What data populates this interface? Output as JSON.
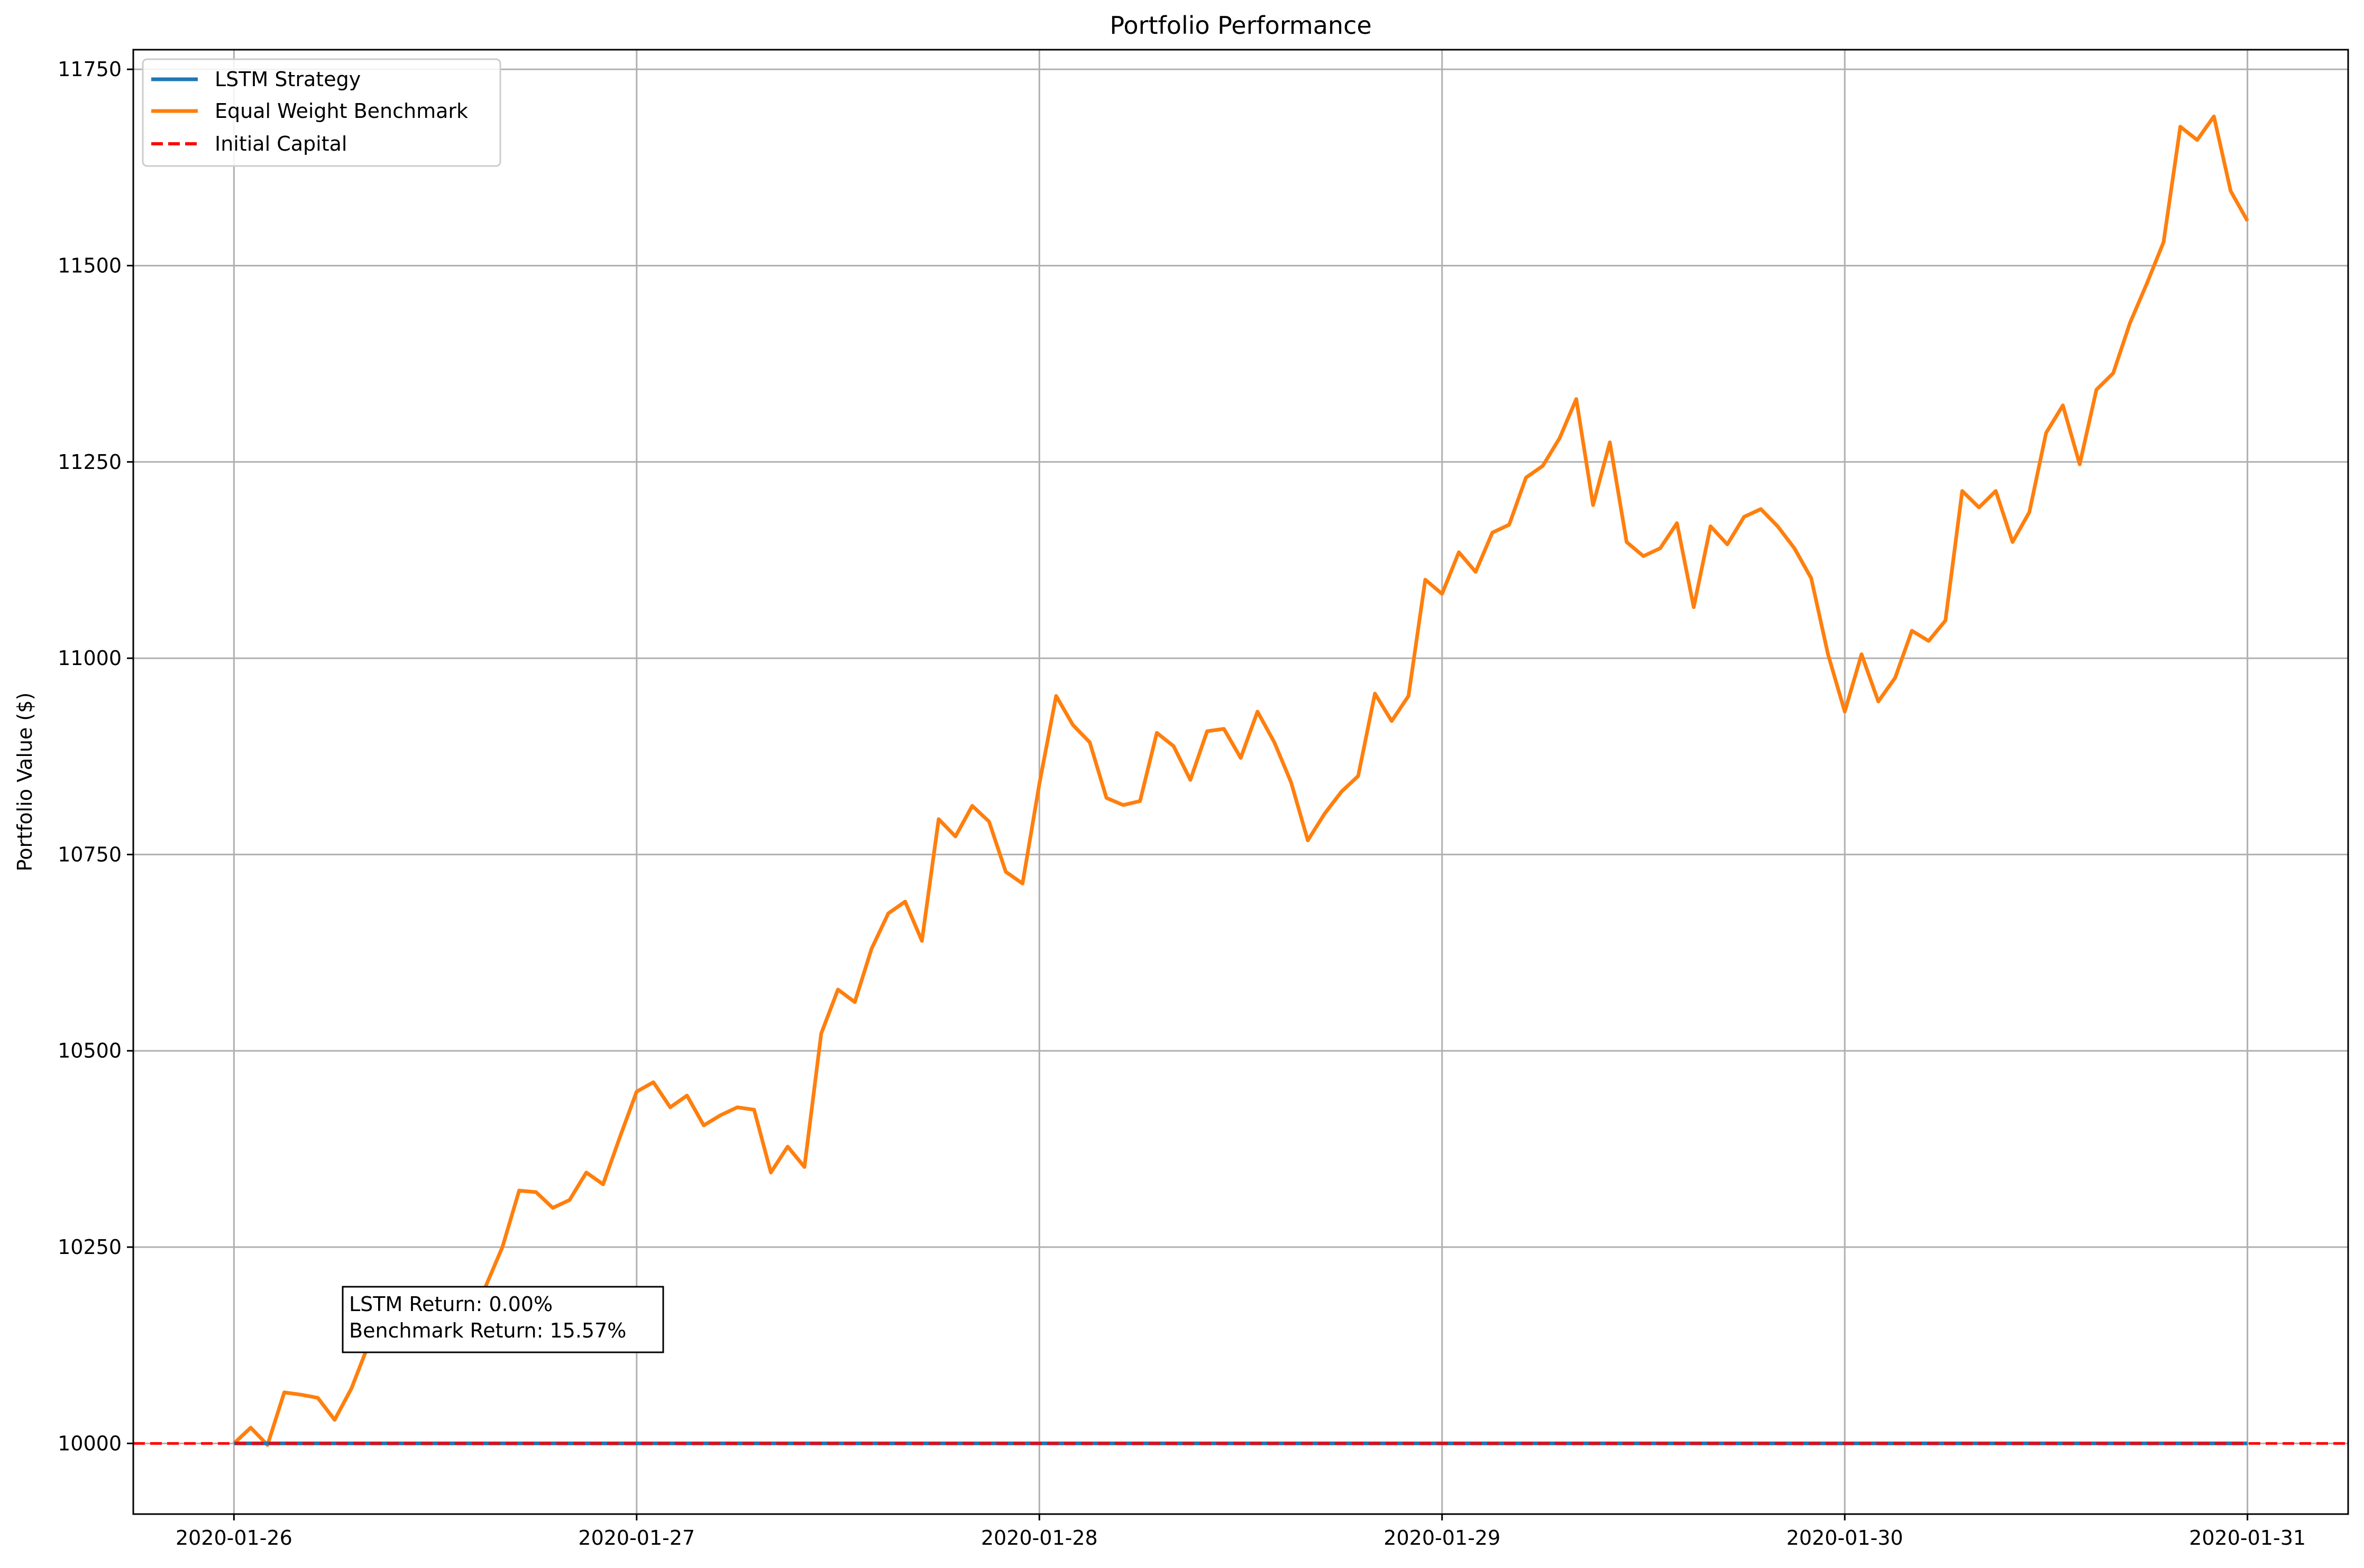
{
  "chart_data": {
    "type": "line",
    "title": "Portfolio Performance",
    "xlabel": "",
    "ylabel": "Portfolio Value ($)",
    "x_ticks": [
      "2020-01-26",
      "2020-01-27",
      "2020-01-28",
      "2020-01-29",
      "2020-01-30",
      "2020-01-31"
    ],
    "y_ticks": [
      10000,
      10250,
      10500,
      10750,
      11000,
      11250,
      11500,
      11750
    ],
    "xlim": [
      "2020-01-25 18:00",
      "2020-01-31 06:00"
    ],
    "ylim": [
      9910,
      11775
    ],
    "grid": true,
    "legend_placement": "upper-left",
    "x_start": "2020-01-26 00:00",
    "x_step_hours": 1,
    "series": [
      {
        "name": "LSTM Strategy",
        "color": "#1f77b4",
        "style": "solid",
        "values": [
          10000,
          10000,
          10000,
          10000,
          10000,
          10000,
          10000,
          10000,
          10000,
          10000,
          10000,
          10000,
          10000,
          10000,
          10000,
          10000,
          10000,
          10000,
          10000,
          10000,
          10000,
          10000,
          10000,
          10000,
          10000,
          10000,
          10000,
          10000,
          10000,
          10000,
          10000,
          10000,
          10000,
          10000,
          10000,
          10000,
          10000,
          10000,
          10000,
          10000,
          10000,
          10000,
          10000,
          10000,
          10000,
          10000,
          10000,
          10000,
          10000,
          10000,
          10000,
          10000,
          10000,
          10000,
          10000,
          10000,
          10000,
          10000,
          10000,
          10000,
          10000,
          10000,
          10000,
          10000,
          10000,
          10000,
          10000,
          10000,
          10000,
          10000,
          10000,
          10000,
          10000,
          10000,
          10000,
          10000,
          10000,
          10000,
          10000,
          10000,
          10000,
          10000,
          10000,
          10000,
          10000,
          10000,
          10000,
          10000,
          10000,
          10000,
          10000,
          10000,
          10000,
          10000,
          10000,
          10000,
          10000,
          10000,
          10000,
          10000,
          10000,
          10000,
          10000,
          10000,
          10000,
          10000,
          10000,
          10000,
          10000,
          10000,
          10000,
          10000,
          10000,
          10000,
          10000,
          10000,
          10000,
          10000,
          10000,
          10000,
          10000
        ]
      },
      {
        "name": "Equal Weight Benchmark",
        "color": "#ff7f0e",
        "style": "solid",
        "values": [
          10000,
          10020,
          9998,
          10065,
          10062,
          10058,
          10030,
          10070,
          10125,
          10160,
          10175,
          10195,
          10185,
          10170,
          10180,
          10200,
          10250,
          10322,
          10320,
          10300,
          10310,
          10345,
          10330,
          10390,
          10448,
          10460,
          10428,
          10443,
          10405,
          10418,
          10428,
          10425,
          10345,
          10378,
          10352,
          10522,
          10578,
          10562,
          10630,
          10675,
          10690,
          10640,
          10795,
          10773,
          10812,
          10792,
          10728,
          10713,
          10840,
          10952,
          10915,
          10893,
          10822,
          10813,
          10818,
          10905,
          10888,
          10845,
          10907,
          10910,
          10873,
          10932,
          10893,
          10842,
          10768,
          10802,
          10830,
          10850,
          10955,
          10920,
          10952,
          11100,
          11082,
          11135,
          11110,
          11160,
          11170,
          11230,
          11245,
          11280,
          11330,
          11195,
          11275,
          11148,
          11130,
          11140,
          11172,
          11065,
          11168,
          11145,
          11180,
          11190,
          11168,
          11140,
          11102,
          11005,
          10932,
          11005,
          10945,
          10975,
          11035,
          11022,
          11048,
          11213,
          11192,
          11213,
          11148,
          11186,
          11287,
          11322,
          11247,
          11342,
          11363,
          11427,
          11477,
          11530,
          11677,
          11660,
          11690,
          11595,
          11557
        ]
      },
      {
        "name": "Initial Capital",
        "color": "#ff0000",
        "style": "dashed",
        "value": 10000
      }
    ],
    "annotation": {
      "lines": [
        "LSTM Return: 0.00%",
        "Benchmark Return: 15.57%"
      ]
    }
  }
}
